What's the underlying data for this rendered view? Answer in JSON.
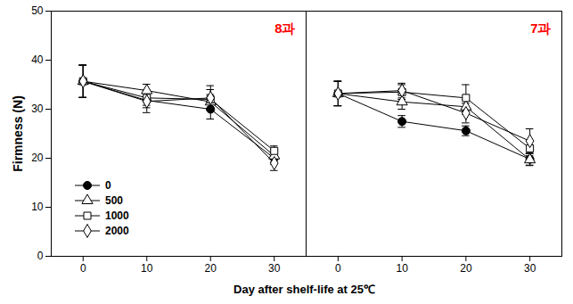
{
  "chart_data": [
    {
      "type": "line",
      "title": "8과",
      "y_label": "Firmness (N)",
      "x_label": "Day after shelf-life at 25℃",
      "x": [
        0,
        10,
        20,
        30
      ],
      "xlim": [
        -5,
        35
      ],
      "xticks": [
        0,
        10,
        20,
        30
      ],
      "ylim": [
        0,
        50
      ],
      "yticks": [
        0,
        10,
        20,
        30,
        40,
        50
      ],
      "grid": false,
      "legend": "lower left",
      "series": [
        {
          "name": "0",
          "color": "#000000",
          "marker": "filled_circle",
          "values": [
            35.7,
            31.8,
            30.0,
            20.0
          ],
          "errors": [
            3.3,
            1.5,
            2.0,
            1.2
          ]
        },
        {
          "name": "500",
          "color": "#000000",
          "marker": "open_triangle",
          "values": [
            35.7,
            33.8,
            31.5,
            20.5
          ],
          "errors": [
            3.3,
            1.3,
            1.5,
            1.3
          ]
        },
        {
          "name": "1000",
          "color": "#000000",
          "marker": "open_square",
          "values": [
            35.7,
            32.3,
            32.0,
            21.5
          ],
          "errors": [
            3.3,
            1.5,
            2.0,
            1.0
          ]
        },
        {
          "name": "2000",
          "color": "#000000",
          "marker": "open_diamond",
          "values": [
            35.7,
            31.6,
            32.3,
            19.0
          ],
          "errors": [
            3.3,
            2.3,
            2.5,
            1.5
          ]
        }
      ]
    },
    {
      "type": "line",
      "title": "7과",
      "tick_labels": "x",
      "x": [
        0,
        10,
        20,
        30
      ],
      "xlim": [
        -5,
        35
      ],
      "xticks": [
        0,
        10,
        20,
        30
      ],
      "ylim": [
        0,
        50
      ],
      "yticks": [
        0,
        10,
        20,
        30,
        40,
        50
      ],
      "grid": false,
      "series": [
        {
          "name": "0",
          "color": "#000000",
          "marker": "filled_circle",
          "values": [
            33.2,
            27.5,
            25.6,
            19.8
          ],
          "errors": [
            2.5,
            1.2,
            1.0,
            1.2
          ]
        },
        {
          "name": "500",
          "color": "#000000",
          "marker": "open_triangle",
          "values": [
            33.2,
            31.5,
            30.5,
            19.7
          ],
          "errors": [
            2.5,
            1.5,
            1.5,
            1.2
          ]
        },
        {
          "name": "1000",
          "color": "#000000",
          "marker": "open_square",
          "values": [
            33.2,
            33.5,
            32.3,
            22.0
          ],
          "errors": [
            2.5,
            1.5,
            2.7,
            1.5
          ]
        },
        {
          "name": "2000",
          "color": "#000000",
          "marker": "open_diamond",
          "values": [
            33.2,
            33.8,
            29.2,
            23.5
          ],
          "errors": [
            2.5,
            1.5,
            2.0,
            2.5
          ]
        }
      ]
    }
  ]
}
